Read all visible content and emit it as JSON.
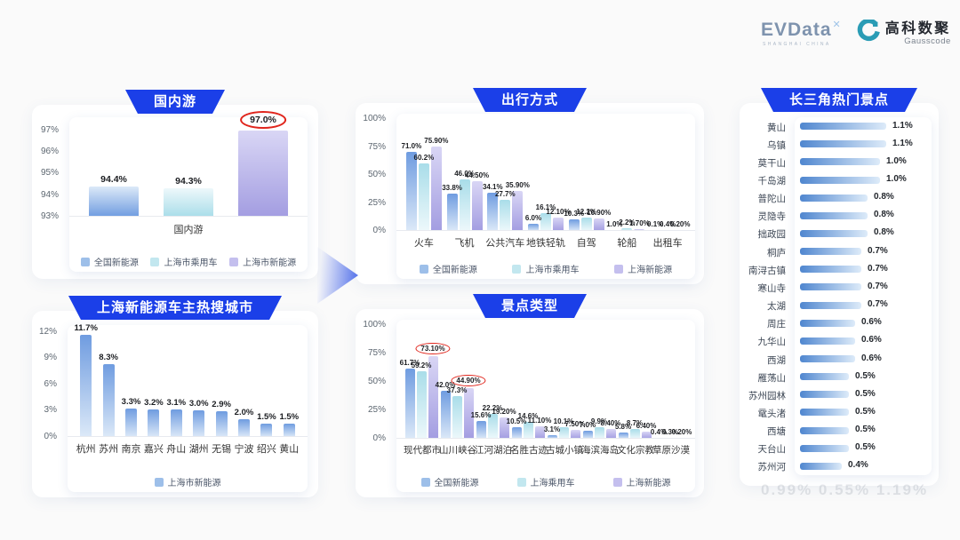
{
  "header": {
    "evdata_text": "EVData",
    "evdata_mark": "✕",
    "evdata_sub": "SHANGHAI CHINA",
    "gauss_cn": "高科数聚",
    "gauss_en": "Gausscode"
  },
  "colors": {
    "banner_blue": "#1b3fe8",
    "highlight_red": "#e0251c",
    "arrow_blue": "#3b5de8",
    "series_gradients": [
      {
        "top": "#6f9ce0",
        "bottom": "#dce9f8"
      },
      {
        "top": "#a9dde9",
        "bottom": "#edf8fb"
      },
      {
        "top": "#d9d6f5",
        "bottom": "#a39de1"
      }
    ],
    "legend_swatches": [
      "#9dbfe9",
      "#c2e7ef",
      "#c4bfee"
    ],
    "hbar_from": "#4f86cf",
    "hbar_to": "#ddebf9"
  },
  "chart_data": [
    {
      "id": "domestic",
      "type": "bar",
      "title": "国内游",
      "xlabel": "国内游",
      "ylim": [
        93,
        97.6
      ],
      "ytick_labels": [
        "97%",
        "96%",
        "95%",
        "94%",
        "93%"
      ],
      "ytick_values": [
        97,
        96,
        95,
        94,
        93
      ],
      "categories": [
        "国内游"
      ],
      "series": [
        {
          "name": "全国新能源",
          "values": [
            94.4
          ],
          "labels": [
            "94.4%"
          ]
        },
        {
          "name": "上海市乘用车",
          "values": [
            94.3
          ],
          "labels": [
            "94.3%"
          ]
        },
        {
          "name": "上海市新能源",
          "values": [
            97.0
          ],
          "labels": [
            "97.0%"
          ],
          "highlight": [
            0
          ]
        }
      ],
      "legend_position": "bottom"
    },
    {
      "id": "travel_mode",
      "type": "bar",
      "title": "出行方式",
      "ylim": [
        0,
        105
      ],
      "ytick_labels": [
        "100%",
        "75%",
        "50%",
        "25%",
        "0%"
      ],
      "ytick_values": [
        100,
        75,
        50,
        25,
        0
      ],
      "categories": [
        "火车",
        "飞机",
        "公共汽车",
        "地铁轻轨",
        "自驾",
        "轮船",
        "出租车"
      ],
      "series": [
        {
          "name": "全国新能源",
          "values": [
            71.0,
            33.8,
            34.1,
            6.0,
            10.3,
            1.0,
            0.1
          ],
          "labels": [
            "71.0%",
            "33.8%",
            "34.1%",
            "6.0%",
            "10.3%",
            "1.0%",
            "0.1%"
          ]
        },
        {
          "name": "上海市乘用车",
          "values": [
            60.2,
            46.0,
            27.7,
            16.1,
            12.2,
            2.2,
            0.4
          ],
          "labels": [
            "60.2%",
            "46.0%",
            "27.7%",
            "16.1%",
            "12.2%",
            "2.2%",
            "0.4%"
          ]
        },
        {
          "name": "上海新能源",
          "values": [
            75.9,
            44.5,
            35.9,
            12.1,
            10.9,
            1.7,
            0.2
          ],
          "labels": [
            "75.90%",
            "44.50%",
            "35.90%",
            "12.10%",
            "10.90%",
            "1.70%",
            "0.20%"
          ]
        }
      ],
      "legend_position": "bottom"
    },
    {
      "id": "cities",
      "type": "bar",
      "title": "上海新能源车主热搜城市",
      "ylim": [
        0,
        12.8
      ],
      "ytick_labels": [
        "12%",
        "9%",
        "6%",
        "3%",
        "0%"
      ],
      "ytick_values": [
        12,
        9,
        6,
        3,
        0
      ],
      "categories": [
        "杭州",
        "苏州",
        "南京",
        "嘉兴",
        "舟山",
        "湖州",
        "无锡",
        "宁波",
        "绍兴",
        "黄山"
      ],
      "series": [
        {
          "name": "上海市新能源",
          "values": [
            11.7,
            8.3,
            3.3,
            3.2,
            3.1,
            3.0,
            2.9,
            2.0,
            1.5,
            1.5
          ],
          "labels": [
            "11.7%",
            "8.3%",
            "3.3%",
            "3.2%",
            "3.1%",
            "3.0%",
            "2.9%",
            "2.0%",
            "1.5%",
            "1.5%"
          ]
        }
      ],
      "legend_position": "bottom"
    },
    {
      "id": "attraction_type",
      "type": "bar",
      "title": "景点类型",
      "ylim": [
        0,
        105
      ],
      "ytick_labels": [
        "100%",
        "75%",
        "50%",
        "25%",
        "0%"
      ],
      "ytick_values": [
        100,
        75,
        50,
        25,
        0
      ],
      "categories": [
        "现代都市",
        "山川峡谷",
        "江河湖泊",
        "名胜古迹",
        "古城小镇",
        "海滨海岛",
        "文化宗教",
        "草原沙漠"
      ],
      "series": [
        {
          "name": "全国新能源",
          "values": [
            61.7,
            42.0,
            15.6,
            10.5,
            3.1,
            7.0,
            5.8,
            0.4
          ],
          "labels": [
            "61.7%",
            "42.0%",
            "15.6%",
            "10.5%",
            "3.1%",
            "7.0%",
            "5.8%",
            "0.4%"
          ]
        },
        {
          "name": "上海乘用车",
          "values": [
            59.2,
            37.3,
            22.2,
            14.6,
            10.1,
            9.9,
            8.7,
            0.3
          ],
          "labels": [
            "59.2%",
            "37.3%",
            "22.2%",
            "14.6%",
            "10.1%",
            "9.9%",
            "8.7%",
            "0.3%"
          ]
        },
        {
          "name": "上海新能源",
          "values": [
            73.1,
            44.9,
            19.2,
            11.1,
            7.5,
            8.4,
            6.4,
            0.2
          ],
          "labels": [
            "73.10%",
            "44.90%",
            "19.20%",
            "11.10%",
            "7.50%",
            "8.40%",
            "6.40%",
            "0.20%"
          ],
          "highlight": [
            0,
            1
          ]
        }
      ],
      "legend_position": "bottom"
    },
    {
      "id": "hot_spots",
      "type": "hbar",
      "title": "长三角热门景点",
      "items": [
        {
          "name": "黄山",
          "value": 1.1,
          "label": "1.1%"
        },
        {
          "name": "乌镇",
          "value": 1.1,
          "label": "1.1%"
        },
        {
          "name": "莫干山",
          "value": 1.0,
          "label": "1.0%"
        },
        {
          "name": "千岛湖",
          "value": 1.0,
          "label": "1.0%"
        },
        {
          "name": "普陀山",
          "value": 0.8,
          "label": "0.8%"
        },
        {
          "name": "灵隐寺",
          "value": 0.8,
          "label": "0.8%"
        },
        {
          "name": "拙政园",
          "value": 0.8,
          "label": "0.8%"
        },
        {
          "name": "桐庐",
          "value": 0.7,
          "label": "0.7%"
        },
        {
          "name": "南浔古镇",
          "value": 0.7,
          "label": "0.7%"
        },
        {
          "name": "寒山寺",
          "value": 0.7,
          "label": "0.7%"
        },
        {
          "name": "太湖",
          "value": 0.7,
          "label": "0.7%"
        },
        {
          "name": "周庄",
          "value": 0.6,
          "label": "0.6%"
        },
        {
          "name": "九华山",
          "value": 0.6,
          "label": "0.6%"
        },
        {
          "name": "西湖",
          "value": 0.6,
          "label": "0.6%"
        },
        {
          "name": "雁荡山",
          "value": 0.5,
          "label": "0.5%"
        },
        {
          "name": "苏州园林",
          "value": 0.5,
          "label": "0.5%"
        },
        {
          "name": "鼋头渚",
          "value": 0.5,
          "label": "0.5%"
        },
        {
          "name": "西塘",
          "value": 0.5,
          "label": "0.5%"
        },
        {
          "name": "天台山",
          "value": 0.5,
          "label": "0.5%"
        },
        {
          "name": "苏州河",
          "value": 0.4,
          "label": "0.4%"
        }
      ]
    }
  ],
  "footer_ghost": "0.99%  0.55%  1.19%"
}
